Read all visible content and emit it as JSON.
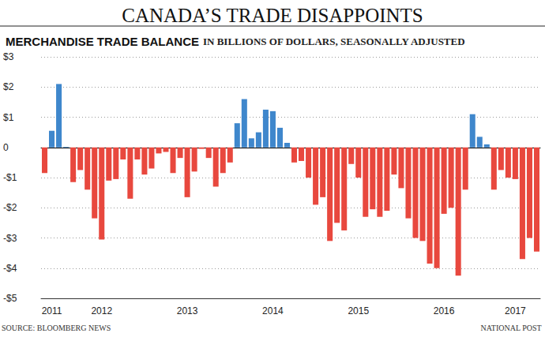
{
  "chart_data": {
    "type": "bar",
    "title": "CANADA’S TRADE DISAPPOINTS",
    "subtitle": "MERCHANDISE TRADE BALANCE",
    "unit_note": "IN BILLIONS OF DOLLARS, SEASONALLY ADJUSTED",
    "source": "SOURCE: BLOOMBERG NEWS",
    "credit": "NATIONAL POST",
    "categories": [
      null,
      "2011",
      null,
      null,
      null,
      null,
      null,
      null,
      "2012",
      null,
      null,
      null,
      null,
      null,
      null,
      null,
      null,
      null,
      null,
      null,
      "2013",
      null,
      null,
      null,
      null,
      null,
      null,
      null,
      null,
      null,
      null,
      null,
      "2014",
      null,
      null,
      null,
      null,
      null,
      null,
      null,
      null,
      null,
      null,
      null,
      "2015",
      null,
      null,
      null,
      null,
      null,
      null,
      null,
      null,
      null,
      null,
      null,
      "2016",
      null,
      null,
      null,
      null,
      null,
      null,
      null,
      null,
      null,
      "2017",
      null,
      null,
      null
    ],
    "values": [
      -0.85,
      0.55,
      2.1,
      0.02,
      -1.15,
      -0.75,
      -1.4,
      -2.35,
      -3.05,
      -1.1,
      -1.05,
      -0.4,
      -1.7,
      -0.4,
      -0.9,
      -0.7,
      -0.2,
      -0.15,
      -0.85,
      -0.35,
      -1.65,
      -0.8,
      -0.05,
      -0.35,
      -1.3,
      -0.85,
      -0.5,
      0.8,
      1.6,
      0.3,
      0.5,
      1.25,
      1.2,
      0.65,
      0.15,
      -0.5,
      -0.45,
      -1.0,
      -1.9,
      -1.65,
      -3.1,
      -2.5,
      -2.75,
      -0.55,
      -1.0,
      -2.3,
      -2.05,
      -2.3,
      -2.1,
      -0.9,
      -1.35,
      -2.35,
      -3.0,
      -3.1,
      -3.85,
      -4.0,
      -2.2,
      -2.0,
      -4.25,
      -1.4,
      1.1,
      0.35,
      0.1,
      -1.4,
      -0.75,
      -1.0,
      -1.05,
      -3.7,
      -3.0,
      -3.45
    ],
    "colors": [
      "#e8483e",
      "#3f87cc",
      "#3f87cc",
      "#3f87cc",
      "#e8483e",
      "#e8483e",
      "#e8483e",
      "#e8483e",
      "#e8483e",
      "#e8483e",
      "#e8483e",
      "#e8483e",
      "#e8483e",
      "#e8483e",
      "#e8483e",
      "#e8483e",
      "#e8483e",
      "#e8483e",
      "#e8483e",
      "#e8483e",
      "#e8483e",
      "#e8483e",
      "#e8483e",
      "#e8483e",
      "#e8483e",
      "#e8483e",
      "#e8483e",
      "#3f87cc",
      "#3f87cc",
      "#3f87cc",
      "#3f87cc",
      "#3f87cc",
      "#3f87cc",
      "#3f87cc",
      "#3f87cc",
      "#e8483e",
      "#e8483e",
      "#e8483e",
      "#e8483e",
      "#e8483e",
      "#e8483e",
      "#e8483e",
      "#e8483e",
      "#e8483e",
      "#e8483e",
      "#e8483e",
      "#e8483e",
      "#e8483e",
      "#e8483e",
      "#e8483e",
      "#e8483e",
      "#e8483e",
      "#e8483e",
      "#e8483e",
      "#e8483e",
      "#e8483e",
      "#e8483e",
      "#e8483e",
      "#e8483e",
      "#e8483e",
      "#3f87cc",
      "#3f87cc",
      "#3f87cc",
      "#e8483e",
      "#e8483e",
      "#e8483e",
      "#e8483e",
      "#e8483e",
      "#e8483e",
      "#e8483e"
    ],
    "ylim": [
      -5,
      3
    ],
    "yticks": [
      {
        "value": -5,
        "label": "-$5"
      },
      {
        "value": -4,
        "label": "-$4"
      },
      {
        "value": -3,
        "label": "-$3"
      },
      {
        "value": -2,
        "label": "-$2"
      },
      {
        "value": -1,
        "label": "-$1"
      },
      0,
      {
        "value": 1,
        "label": "$1"
      },
      {
        "value": 2,
        "label": "$2"
      },
      {
        "value": 3,
        "label": "$3"
      }
    ],
    "grid": true
  }
}
